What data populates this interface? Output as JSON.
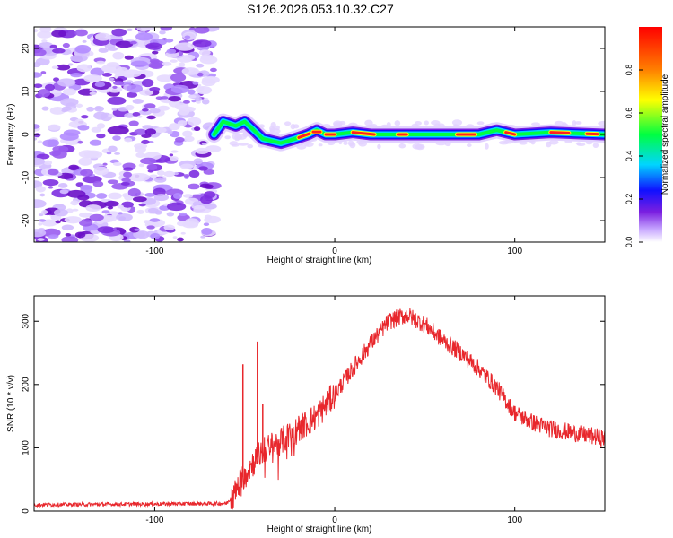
{
  "title": "S126.2026.053.10.32.C27",
  "chart_data": [
    {
      "type": "heatmap",
      "xlabel": "Height of straight line (km)",
      "ylabel": "Frequency (Hz)",
      "xlim": [
        -167,
        150
      ],
      "ylim": [
        -25,
        25
      ],
      "x_ticks": [
        -100,
        0,
        100
      ],
      "y_ticks": [
        -20,
        -10,
        0,
        10,
        20
      ],
      "grid": false,
      "colorbar": {
        "label": "Normalized spectral amplitude",
        "range": [
          0,
          1
        ],
        "ticks": [
          0.0,
          0.2,
          0.4,
          0.6,
          0.8
        ],
        "colormap": [
          "#ffffff",
          "#c6a6ff",
          "#7b1fe0",
          "#1010ff",
          "#00d5ff",
          "#00ff40",
          "#ffff00",
          "#ff8000",
          "#ff0000"
        ]
      },
      "noise_region_x": [
        -167,
        -67
      ],
      "ridge": {
        "x": [
          -67,
          -62,
          -55,
          -50,
          -45,
          -40,
          -30,
          -22,
          -15,
          -10,
          -5,
          0,
          10,
          20,
          40,
          60,
          80,
          90,
          100,
          120,
          150
        ],
        "y": [
          0,
          3,
          2,
          3,
          1,
          -1,
          -2,
          -1,
          0,
          1,
          0,
          0,
          0.5,
          0,
          0,
          0,
          0,
          1,
          0,
          0.5,
          0
        ]
      }
    },
    {
      "type": "line",
      "xlabel": "Height of straight line (km)",
      "ylabel": "SNR (10 * v/v)",
      "xlim": [
        -167,
        150
      ],
      "ylim": [
        0,
        340
      ],
      "x_ticks": [
        -100,
        0,
        100
      ],
      "y_ticks": [
        0,
        100,
        200,
        300
      ],
      "grid": false,
      "series_color": "#e8272c",
      "envelope": {
        "x": [
          -167,
          -60,
          -55,
          -50,
          -40,
          -30,
          -20,
          -10,
          0,
          10,
          20,
          30,
          40,
          50,
          60,
          70,
          80,
          90,
          100,
          110,
          120,
          130,
          140,
          150
        ],
        "y": [
          10,
          12,
          30,
          60,
          95,
          110,
          130,
          150,
          185,
          225,
          265,
          300,
          310,
          295,
          270,
          250,
          225,
          195,
          155,
          140,
          130,
          125,
          120,
          115
        ]
      },
      "spikes": [
        {
          "x": -51,
          "y": 232
        },
        {
          "x": -43,
          "y": 268
        },
        {
          "x": -40,
          "y": 170
        }
      ]
    }
  ]
}
